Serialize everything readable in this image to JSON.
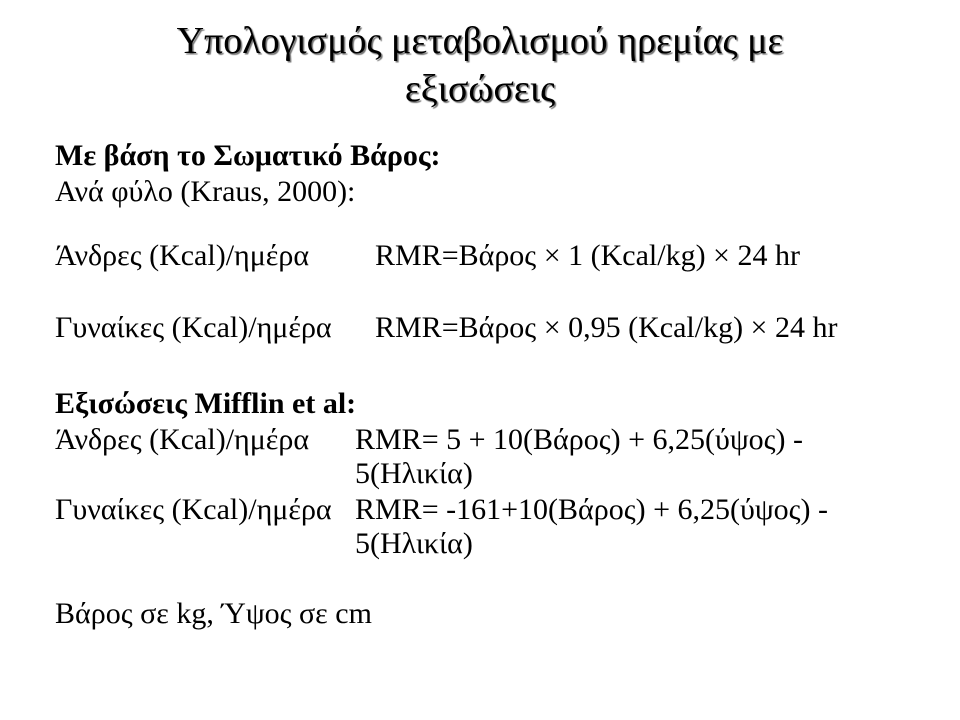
{
  "title": {
    "line1": "Υπολογισμός μεταβολισμού ηρεμίας με",
    "line2": "εξισώσεις"
  },
  "section1": {
    "heading": "Με βάση το Σωματικό Βάρος:",
    "subheading": "Ανά φύλο (Kraus, 2000):"
  },
  "kraus": {
    "menLabel": "Άνδρες (Kcal)/ημέρα",
    "menFormula": "RMR=Βάρος × 1 (Kcal/kg) × 24 hr",
    "womenLabel": "Γυναίκες (Kcal)/ημέρα",
    "womenFormula": "RMR=Βάρος × 0,95 (Kcal/kg) × 24 hr"
  },
  "mifflin": {
    "heading": "Εξισώσεις Mifflin et al:",
    "menLabel": "Άνδρες (Kcal)/ημέρα",
    "menFormula": "RMR= 5 + 10(Βάρος) + 6,25(ύψος) - 5(Ηλικία)",
    "womenLabel": "Γυναίκες (Kcal)/ημέρα",
    "womenFormula": "RMR= -161+10(Βάρος) + 6,25(ύψος) - 5(Ηλικία)"
  },
  "units": "Βάρος σε kg, Ύψος σε cm",
  "colors": {
    "background": "#ffffff",
    "text": "#000000",
    "shadow": "rgba(0,0,0,0.55)"
  }
}
